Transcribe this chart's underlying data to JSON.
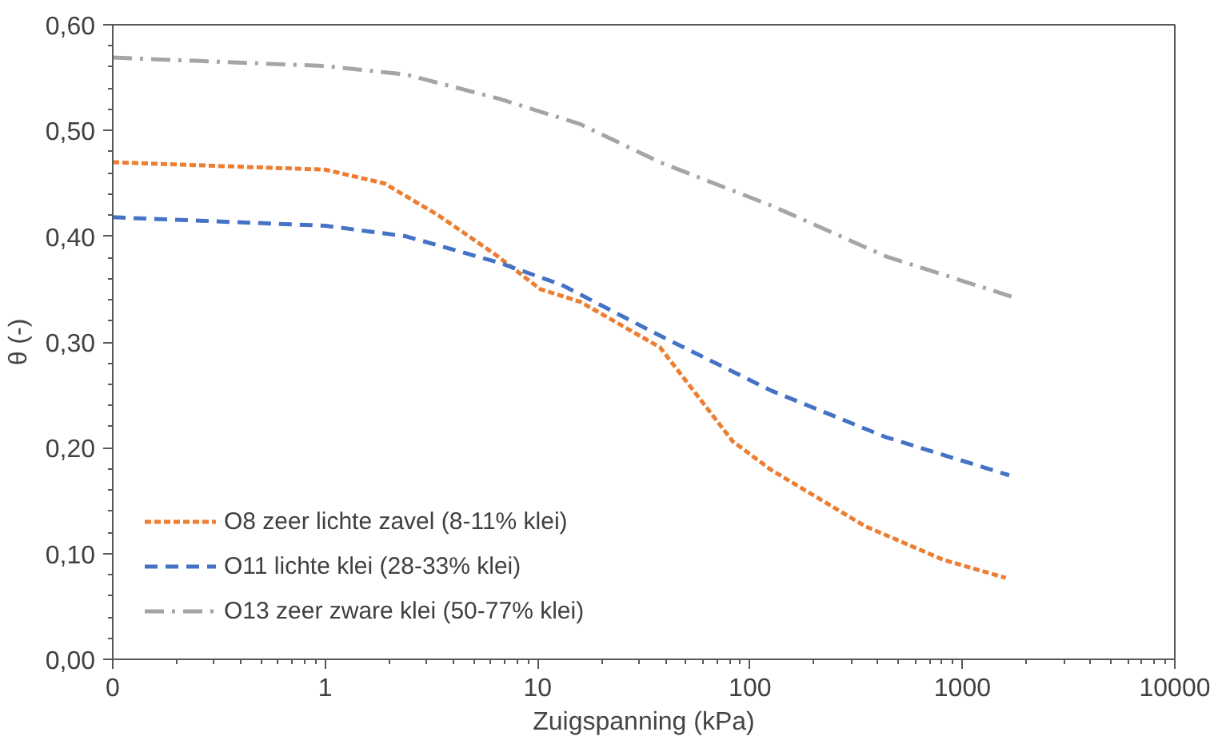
{
  "chart_data": {
    "type": "line",
    "xlabel": "Zuigspanning (kPa)",
    "ylabel": "θ (-)",
    "log": "x",
    "grid": false,
    "legend": "bottom left",
    "marker": "none",
    "xlim": [
      0.1,
      10000
    ],
    "xticks": [
      {
        "value": 0.1,
        "label": "0"
      },
      1,
      10,
      100,
      1000,
      10000
    ],
    "ylim": [
      0,
      0.6
    ],
    "yticks": [
      {
        "value": 0,
        "label": "0,00"
      },
      {
        "value": 0.1,
        "label": "0,10"
      },
      {
        "value": 0.2,
        "label": "0,20"
      },
      {
        "value": 0.3,
        "label": "0,30"
      },
      {
        "value": 0.4,
        "label": "0,40"
      },
      {
        "value": 0.5,
        "label": "0,50"
      },
      {
        "value": 0.6,
        "label": "0,60"
      }
    ],
    "series": [
      {
        "name": "O8 zeer lichte zavel (8-11% klei)",
        "color": "#ed7d31",
        "line_style": "dotted",
        "x": [
          0.1,
          1,
          1.9,
          3.4,
          6.3,
          10.3,
          15.9,
          37.7,
          83,
          126,
          347,
          815,
          1600
        ],
        "values": [
          0.47,
          0.463,
          0.45,
          0.42,
          0.383,
          0.35,
          0.338,
          0.295,
          0.206,
          0.179,
          0.126,
          0.094,
          0.077
        ]
      },
      {
        "name": "O11 lichte klei (28-33% klei)",
        "color": "#4472c4",
        "line_style": "dashed",
        "x": [
          0.1,
          1,
          2.4,
          6.6,
          13,
          37.7,
          126,
          437,
          1660
        ],
        "values": [
          0.418,
          0.41,
          0.4,
          0.375,
          0.354,
          0.306,
          0.254,
          0.21,
          0.174
        ]
      },
      {
        "name": "O13 zeer zware klei (50-77% klei)",
        "color": "#a5a5a5",
        "line_style": "dashdot",
        "x": [
          0.1,
          1,
          2.4,
          6.6,
          15.9,
          37.7,
          126,
          437,
          1700
        ],
        "values": [
          0.569,
          0.561,
          0.553,
          0.53,
          0.506,
          0.47,
          0.429,
          0.381,
          0.343
        ]
      }
    ]
  }
}
